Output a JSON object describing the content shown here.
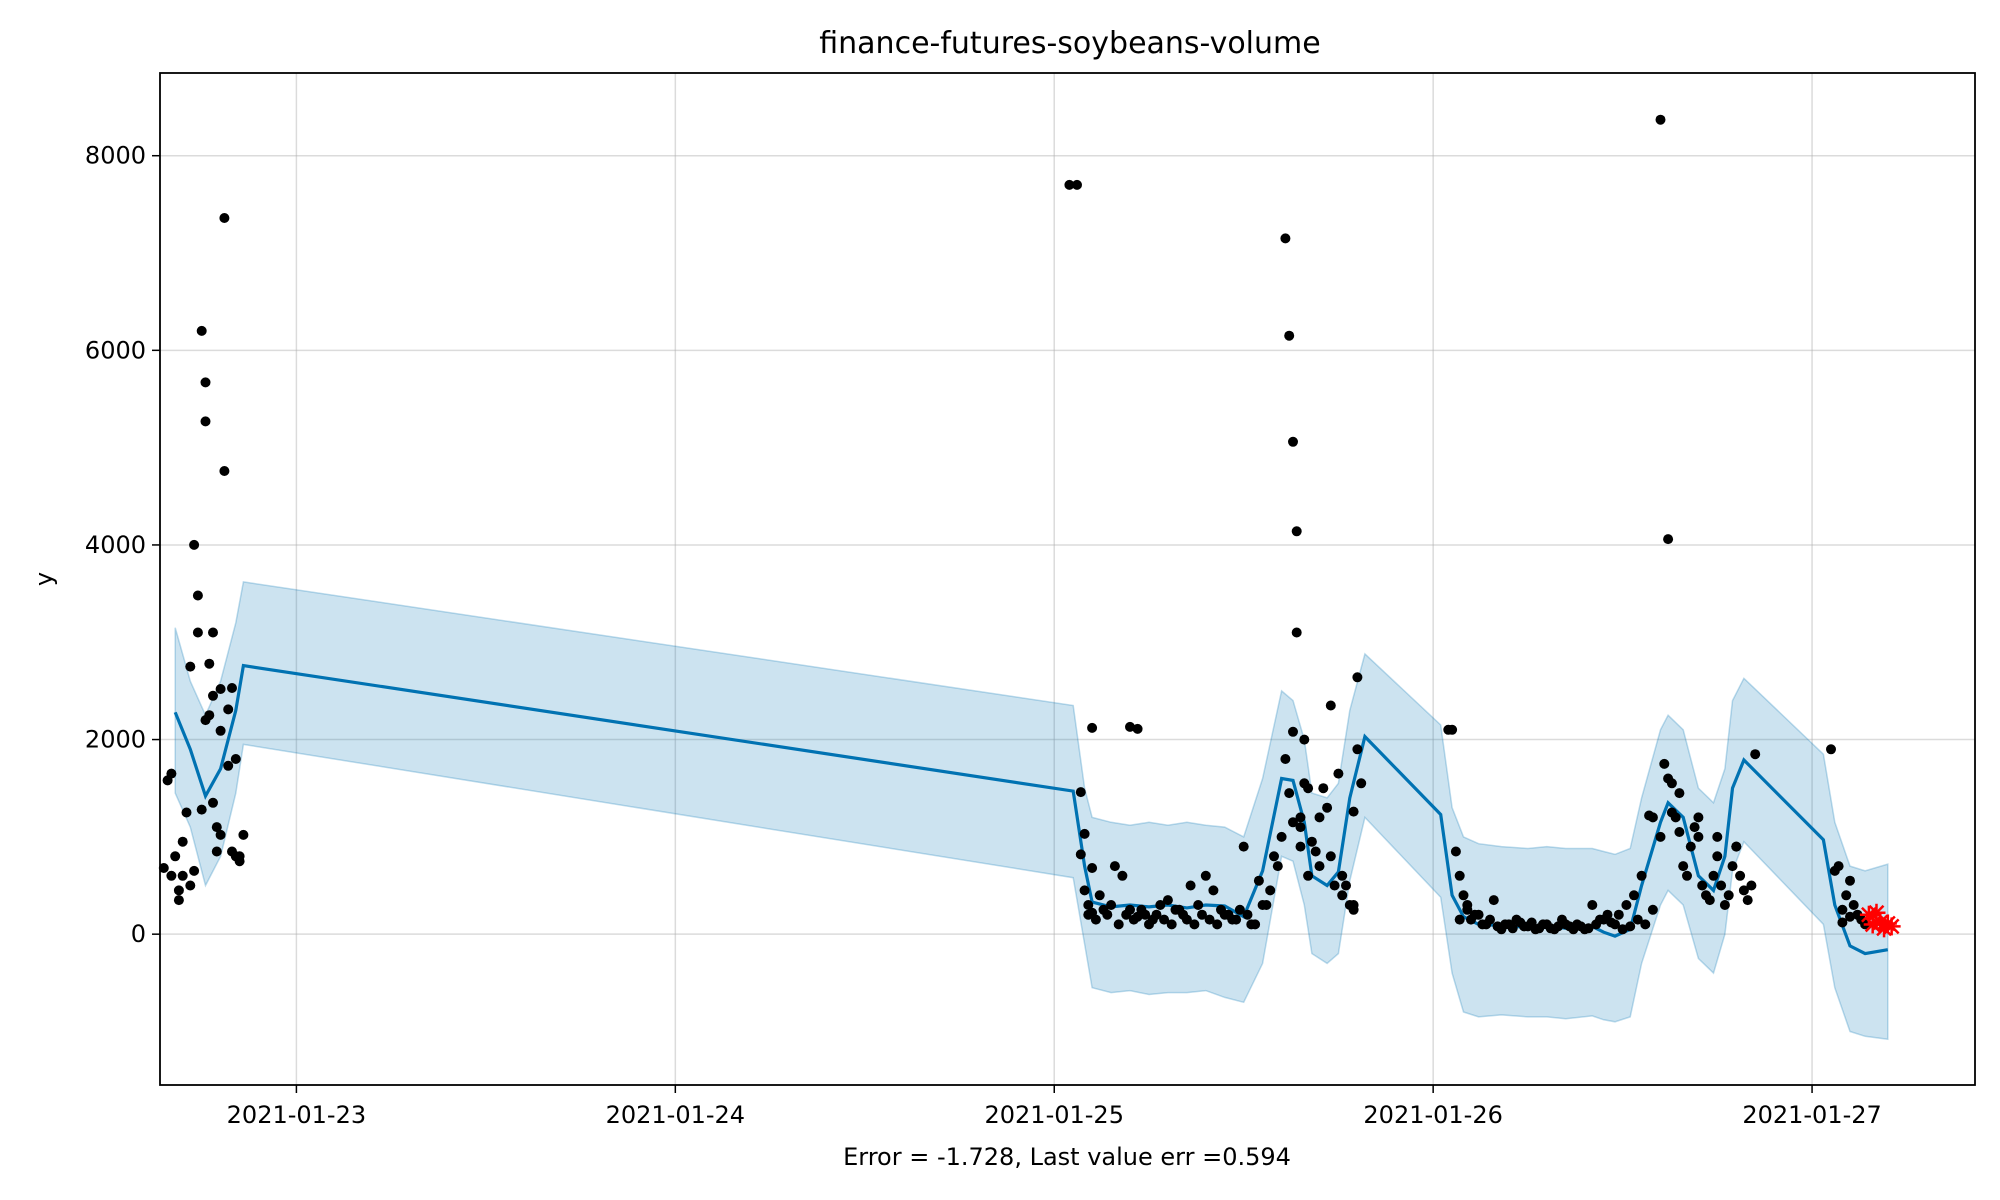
{
  "chart_data": {
    "type": "scatter",
    "title": "finance-futures-soybeans-volume",
    "xlabel": "Error = -1.728, Last value err =0.594",
    "ylabel": "y",
    "x_ticks": [
      "2021-01-23",
      "2021-01-24",
      "2021-01-25",
      "2021-01-26",
      "2021-01-27"
    ],
    "y_ticks": [
      0,
      2000,
      4000,
      6000,
      8000
    ],
    "xlim": [
      22.64,
      27.43
    ],
    "ylim": [
      -1550,
      8850
    ],
    "grid": true,
    "colors": {
      "observed": "#000000",
      "forecast": "#0072B2",
      "interval_fill": "#0072B2",
      "test": "#ff0000"
    },
    "forecast": {
      "x": [
        22.68,
        22.72,
        22.76,
        22.8,
        22.84,
        22.86,
        25.05,
        25.08,
        25.1,
        25.15,
        25.2,
        25.25,
        25.3,
        25.35,
        25.4,
        25.45,
        25.5,
        25.55,
        25.6,
        25.63,
        25.66,
        25.68,
        25.72,
        25.75,
        25.78,
        25.82,
        26.02,
        26.05,
        26.08,
        26.12,
        26.18,
        26.25,
        26.3,
        26.35,
        26.42,
        26.45,
        26.48,
        26.52,
        26.55,
        26.6,
        26.62,
        26.66,
        26.7,
        26.74,
        26.77,
        26.79,
        26.82,
        27.03,
        27.06,
        27.1,
        27.14,
        27.2
      ],
      "yhat": [
        2280,
        1900,
        1420,
        1700,
        2300,
        2760,
        1470,
        700,
        330,
        280,
        300,
        280,
        300,
        270,
        300,
        290,
        180,
        650,
        1600,
        1580,
        1150,
        600,
        500,
        640,
        1400,
        2030,
        1230,
        400,
        180,
        100,
        90,
        70,
        90,
        60,
        80,
        20,
        -20,
        50,
        500,
        1150,
        1350,
        1200,
        600,
        450,
        800,
        1500,
        1790,
        970,
        300,
        -120,
        -200,
        -160
      ],
      "upper": [
        3150,
        2600,
        2250,
        2600,
        3200,
        3620,
        2350,
        1500,
        1200,
        1150,
        1120,
        1150,
        1120,
        1150,
        1120,
        1100,
        1000,
        1600,
        2500,
        2400,
        2000,
        1450,
        1400,
        1550,
        2300,
        2880,
        2150,
        1300,
        1000,
        930,
        900,
        880,
        900,
        880,
        880,
        850,
        820,
        880,
        1400,
        2100,
        2250,
        2100,
        1500,
        1350,
        1700,
        2400,
        2630,
        1850,
        1150,
        700,
        650,
        720
      ],
      "lower": [
        1450,
        1100,
        500,
        800,
        1450,
        1950,
        580,
        -100,
        -550,
        -600,
        -580,
        -620,
        -600,
        -600,
        -580,
        -650,
        -700,
        -300,
        800,
        750,
        300,
        -200,
        -300,
        -200,
        550,
        1200,
        380,
        -400,
        -800,
        -850,
        -830,
        -850,
        -850,
        -870,
        -840,
        -880,
        -900,
        -850,
        -300,
        300,
        450,
        300,
        -250,
        -400,
        0,
        650,
        950,
        100,
        -550,
        -1000,
        -1050,
        -1080
      ]
    },
    "observed": {
      "x": [
        22.65,
        22.66,
        22.67,
        22.68,
        22.69,
        22.7,
        22.71,
        22.72,
        22.73,
        22.74,
        22.74,
        22.75,
        22.76,
        22.76,
        22.77,
        22.78,
        22.78,
        22.79,
        22.79,
        22.8,
        22.8,
        22.81,
        22.81,
        22.82,
        22.82,
        22.83,
        22.83,
        22.84,
        22.84,
        22.85,
        22.76,
        22.77,
        22.78,
        22.72,
        22.73,
        22.7,
        22.69,
        22.67,
        22.75,
        22.8,
        22.85,
        22.86,
        25.06,
        25.07,
        25.07,
        25.08,
        25.08,
        25.09,
        25.1,
        25.1,
        25.12,
        25.14,
        25.16,
        25.18,
        25.2,
        25.22,
        25.24,
        25.26,
        25.28,
        25.3,
        25.32,
        25.34,
        25.36,
        25.38,
        25.4,
        25.42,
        25.44,
        25.46,
        25.48,
        25.5,
        25.52,
        25.54,
        25.56,
        25.58,
        25.6,
        25.61,
        25.62,
        25.62,
        25.63,
        25.63,
        25.64,
        25.64,
        25.65,
        25.65,
        25.66,
        25.66,
        25.67,
        25.68,
        25.69,
        25.7,
        25.71,
        25.72,
        25.73,
        25.74,
        25.75,
        25.76,
        25.77,
        25.78,
        25.79,
        25.8,
        25.8,
        25.81,
        25.09,
        25.11,
        25.13,
        25.15,
        25.17,
        25.19,
        25.21,
        25.23,
        25.25,
        25.27,
        25.29,
        25.31,
        25.33,
        25.35,
        25.37,
        25.39,
        25.41,
        25.43,
        25.45,
        25.47,
        25.49,
        25.51,
        25.53,
        25.55,
        25.57,
        25.59,
        25.61,
        25.63,
        25.65,
        25.67,
        25.7,
        25.73,
        25.76,
        25.79,
        25.79,
        26.05,
        26.06,
        26.07,
        26.08,
        26.09,
        26.1,
        26.12,
        26.14,
        26.16,
        26.18,
        26.2,
        26.22,
        26.24,
        26.26,
        26.28,
        26.3,
        26.32,
        26.34,
        26.36,
        26.38,
        26.4,
        26.42,
        26.44,
        26.46,
        26.48,
        26.5,
        26.52,
        26.54,
        26.56,
        26.58,
        26.6,
        26.61,
        26.62,
        26.62,
        26.63,
        26.63,
        26.64,
        26.65,
        26.66,
        26.67,
        26.68,
        26.69,
        26.7,
        26.71,
        26.72,
        26.73,
        26.74,
        26.75,
        26.76,
        26.77,
        26.78,
        26.79,
        26.8,
        26.81,
        26.82,
        26.83,
        26.84,
        26.07,
        26.09,
        26.11,
        26.13,
        26.15,
        26.17,
        26.19,
        26.21,
        26.23,
        26.25,
        26.27,
        26.29,
        26.31,
        26.33,
        26.35,
        26.37,
        26.39,
        26.41,
        26.43,
        26.45,
        26.47,
        26.49,
        26.51,
        26.53,
        26.55,
        26.57,
        26.65,
        26.7,
        26.75,
        26.8,
        27.05,
        27.06,
        27.07,
        27.08,
        27.09,
        27.1,
        27.11,
        27.12,
        27.13,
        27.14,
        27.08,
        27.1
      ],
      "y": [
        680,
        1580,
        600,
        800,
        350,
        950,
        1250,
        2750,
        4000,
        3480,
        3100,
        6200,
        5670,
        5270,
        2250,
        2450,
        1350,
        850,
        1100,
        2090,
        2520,
        4760,
        7360,
        1730,
        2310,
        2530,
        850,
        800,
        1800,
        750,
        2200,
        2780,
        3100,
        500,
        650,
        600,
        450,
        1650,
        1280,
        1020,
        800,
        1020,
        7700,
        1460,
        820,
        450,
        1030,
        300,
        220,
        680,
        400,
        200,
        700,
        600,
        250,
        180,
        200,
        150,
        300,
        350,
        250,
        200,
        500,
        300,
        600,
        450,
        250,
        200,
        150,
        900,
        100,
        550,
        300,
        800,
        1000,
        7150,
        6150,
        1450,
        5060,
        2080,
        4140,
        3100,
        1200,
        1100,
        2000,
        1550,
        1500,
        950,
        850,
        700,
        1500,
        1300,
        2350,
        500,
        1650,
        600,
        500,
        300,
        250,
        1900,
        2640,
        1550,
        200,
        150,
        250,
        300,
        100,
        200,
        150,
        250,
        100,
        200,
        150,
        100,
        250,
        150,
        100,
        200,
        150,
        100,
        200,
        150,
        250,
        200,
        100,
        300,
        450,
        700,
        1800,
        1150,
        900,
        600,
        1200,
        800,
        400,
        300,
        1260,
        2100,
        850,
        600,
        400,
        250,
        150,
        200,
        100,
        350,
        50,
        100,
        150,
        80,
        120,
        60,
        100,
        50,
        150,
        80,
        100,
        50,
        300,
        150,
        200,
        100,
        50,
        80,
        150,
        100,
        250,
        1000,
        1750,
        1600,
        4060,
        1250,
        1550,
        1200,
        1450,
        700,
        600,
        900,
        1100,
        1000,
        500,
        400,
        350,
        600,
        800,
        500,
        300,
        400,
        700,
        900,
        600,
        450,
        350,
        500,
        150,
        300,
        200,
        100,
        150,
        80,
        100,
        60,
        120,
        80,
        50,
        100,
        60,
        80,
        100,
        50,
        80,
        60,
        100,
        150,
        120,
        200,
        300,
        400,
        600,
        1220,
        1050,
        1200,
        1000,
        900,
        1900,
        650,
        700,
        250,
        400,
        550,
        300,
        200,
        150,
        100,
        120,
        180
      ],
      "extra_x": [
        26.6,
        26.85,
        25.1,
        25.2,
        25.04,
        25.22,
        26.04,
        26.58
      ],
      "extra_y": [
        8370,
        1850,
        2120,
        2130,
        7700,
        2110,
        2100,
        1200
      ]
    },
    "test": {
      "x": [
        27.15,
        27.16,
        27.17,
        27.18,
        27.19,
        27.2,
        27.21
      ],
      "y": [
        200,
        100,
        220,
        120,
        60,
        110,
        80
      ]
    }
  }
}
